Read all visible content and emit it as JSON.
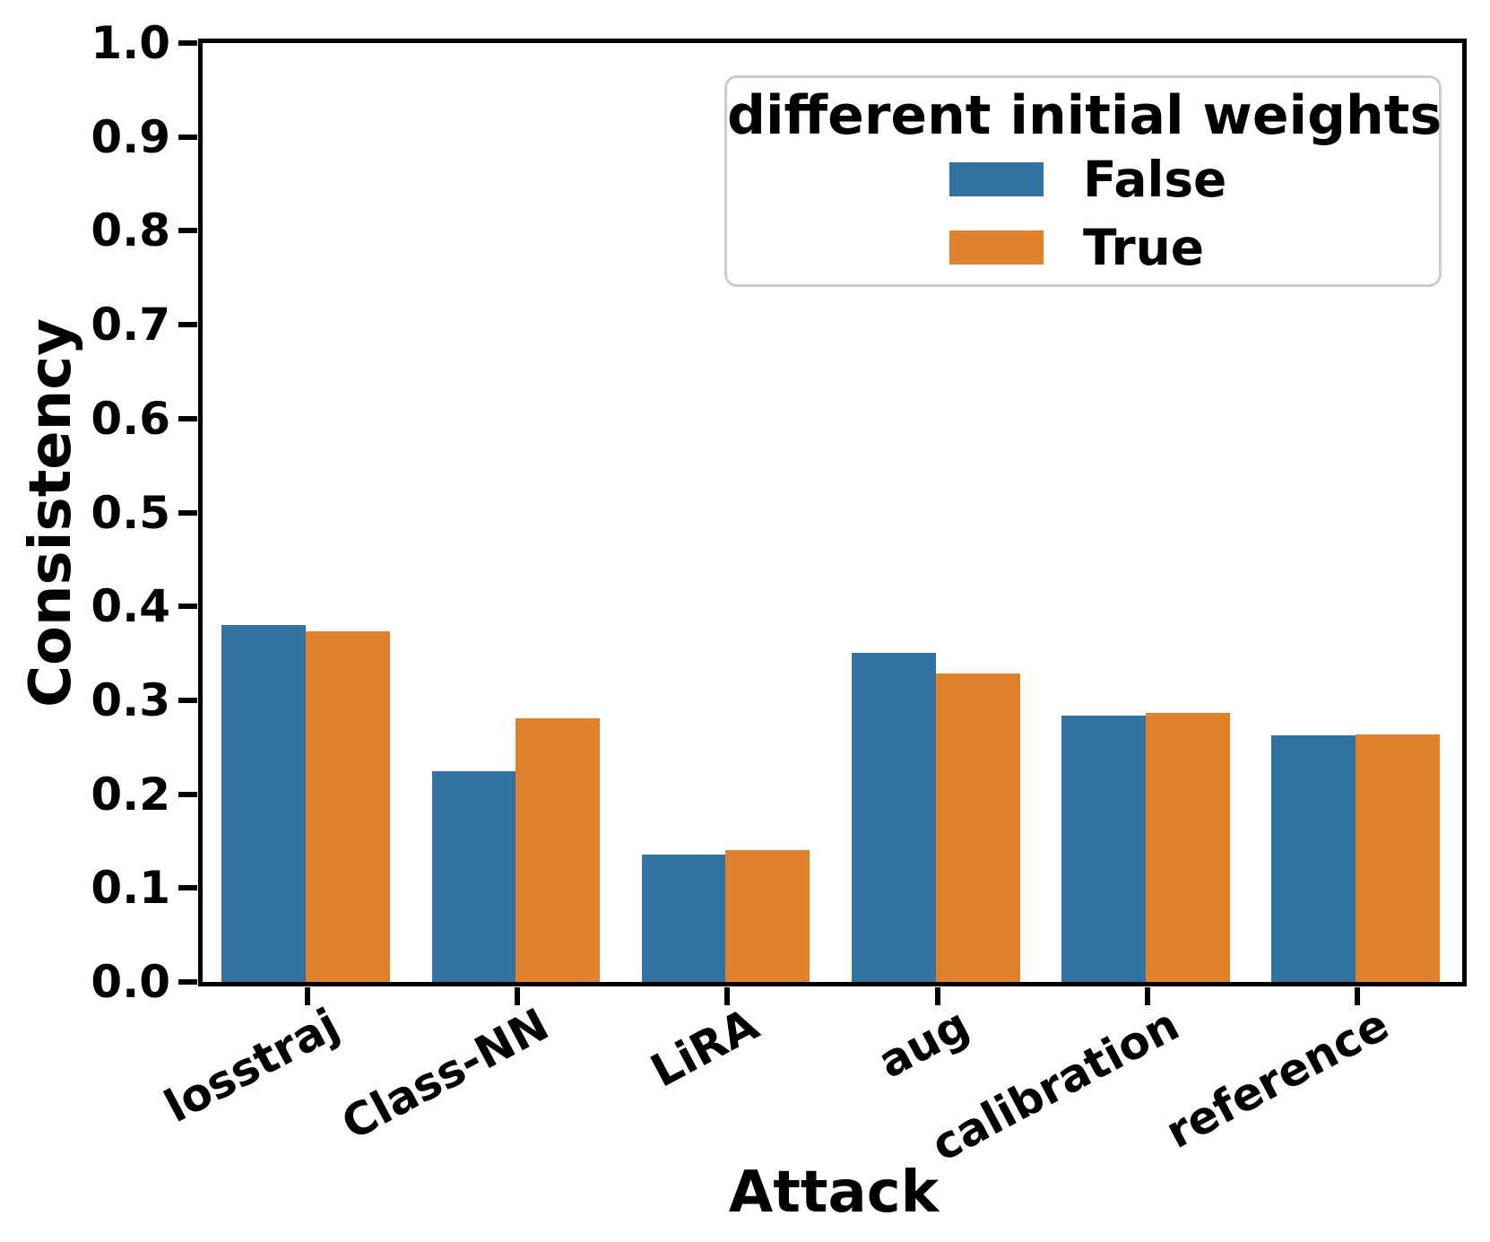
{
  "chart_data": {
    "type": "bar",
    "title": "",
    "xlabel": "Attack",
    "ylabel": "Consistency",
    "categories": [
      "losstraj",
      "Class-NN",
      "LiRA",
      "aug",
      "calibration",
      "reference"
    ],
    "series": [
      {
        "name": "False",
        "color": "#3274a1",
        "values": [
          0.38,
          0.224,
          0.136,
          0.351,
          0.284,
          0.263
        ]
      },
      {
        "name": "True",
        "color": "#e1812c",
        "values": [
          0.373,
          0.281,
          0.14,
          0.329,
          0.287,
          0.264
        ]
      }
    ],
    "ylim": [
      0.0,
      1.0
    ],
    "yticks": [
      "0.0",
      "0.1",
      "0.2",
      "0.3",
      "0.4",
      "0.5",
      "0.6",
      "0.7",
      "0.8",
      "0.9",
      "1.0"
    ],
    "grid": false,
    "legend": {
      "title": "different initial weights",
      "position": "upper right",
      "entries": [
        "False",
        "True"
      ]
    },
    "colors": {
      "false_bar": "#3274a1",
      "true_bar": "#e1812c",
      "spine": "#000000",
      "legend_border": "#cccccc"
    }
  }
}
